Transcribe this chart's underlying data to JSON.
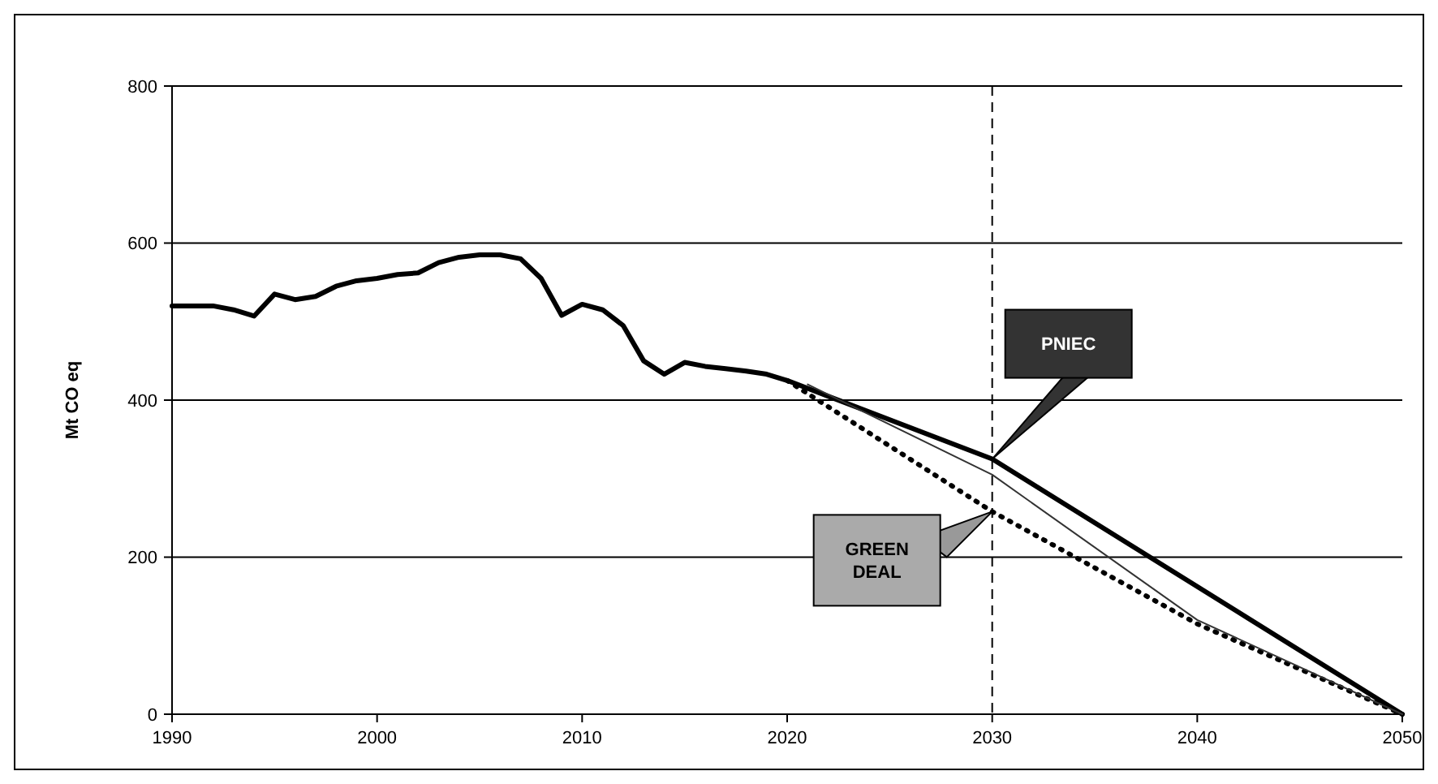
{
  "chart_data": {
    "type": "line",
    "ylabel": "Mt CO eq",
    "xlim": [
      1990,
      2050
    ],
    "xticks": [
      1990,
      2000,
      2010,
      2020,
      2030,
      2040,
      2050
    ],
    "ylim": [
      0,
      800
    ],
    "yticks": [
      0,
      200,
      400,
      600,
      800
    ],
    "grid": "y",
    "marker": "none",
    "series": [
      {
        "color": "#000000",
        "line_style": "solid",
        "x": [
          1990,
          1991,
          1992,
          1993,
          1994,
          1995,
          1996,
          1997,
          1998,
          1999,
          2000,
          2001,
          2002,
          2003,
          2004,
          2005,
          2006,
          2007,
          2008,
          2009,
          2010,
          2011,
          2012,
          2013,
          2014,
          2015,
          2016,
          2017,
          2018,
          2019,
          2020,
          2030,
          2050
        ],
        "values": [
          520,
          520,
          520,
          515,
          507,
          535,
          528,
          532,
          545,
          552,
          555,
          560,
          562,
          575,
          582,
          585,
          585,
          580,
          555,
          508,
          522,
          515,
          495,
          450,
          433,
          448,
          443,
          440,
          437,
          433,
          425,
          325,
          0
        ]
      },
      {
        "color": "#000000",
        "line_style": "dotted",
        "x": [
          2020,
          2030,
          2040,
          2050
        ],
        "values": [
          425,
          258,
          115,
          0
        ]
      },
      {
        "color": "#333333",
        "line_style": "solid",
        "x": [
          2021,
          2030,
          2040,
          2050
        ],
        "values": [
          420,
          305,
          120,
          0
        ]
      }
    ],
    "ref_lines": [
      {
        "axis": "x",
        "value": 2030,
        "line_style": "dashed",
        "color": "#000000"
      }
    ],
    "annotations": [
      "PNIEC",
      "GREEN DEAL"
    ]
  }
}
